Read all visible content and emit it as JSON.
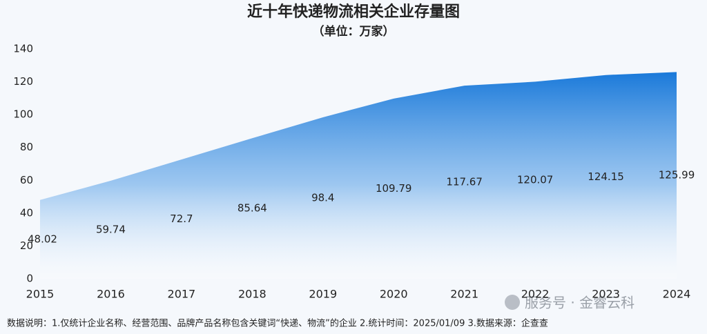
{
  "chart_data": {
    "type": "area",
    "title": "近十年快递物流相关企业存量图",
    "subtitle": "（单位：万家）",
    "categories": [
      "2015",
      "2016",
      "2017",
      "2018",
      "2019",
      "2020",
      "2021",
      "2022",
      "2023",
      "2024"
    ],
    "values": [
      48.02,
      59.74,
      72.7,
      85.64,
      98.4,
      109.79,
      117.67,
      120.07,
      124.15,
      125.99
    ],
    "color": "#1a7fdc",
    "ylim": [
      0,
      140
    ],
    "yticks": [
      0,
      20,
      40,
      60,
      80,
      100,
      120,
      140
    ],
    "grid": false,
    "note": "数据说明：1.仅统计企业名称、经营范围、品牌产品名称包含关键词“快递、物流”的企业 2.统计时间：2025/01/09 3.数据来源：企查查",
    "watermark": "服务号 · 金睿云科"
  }
}
